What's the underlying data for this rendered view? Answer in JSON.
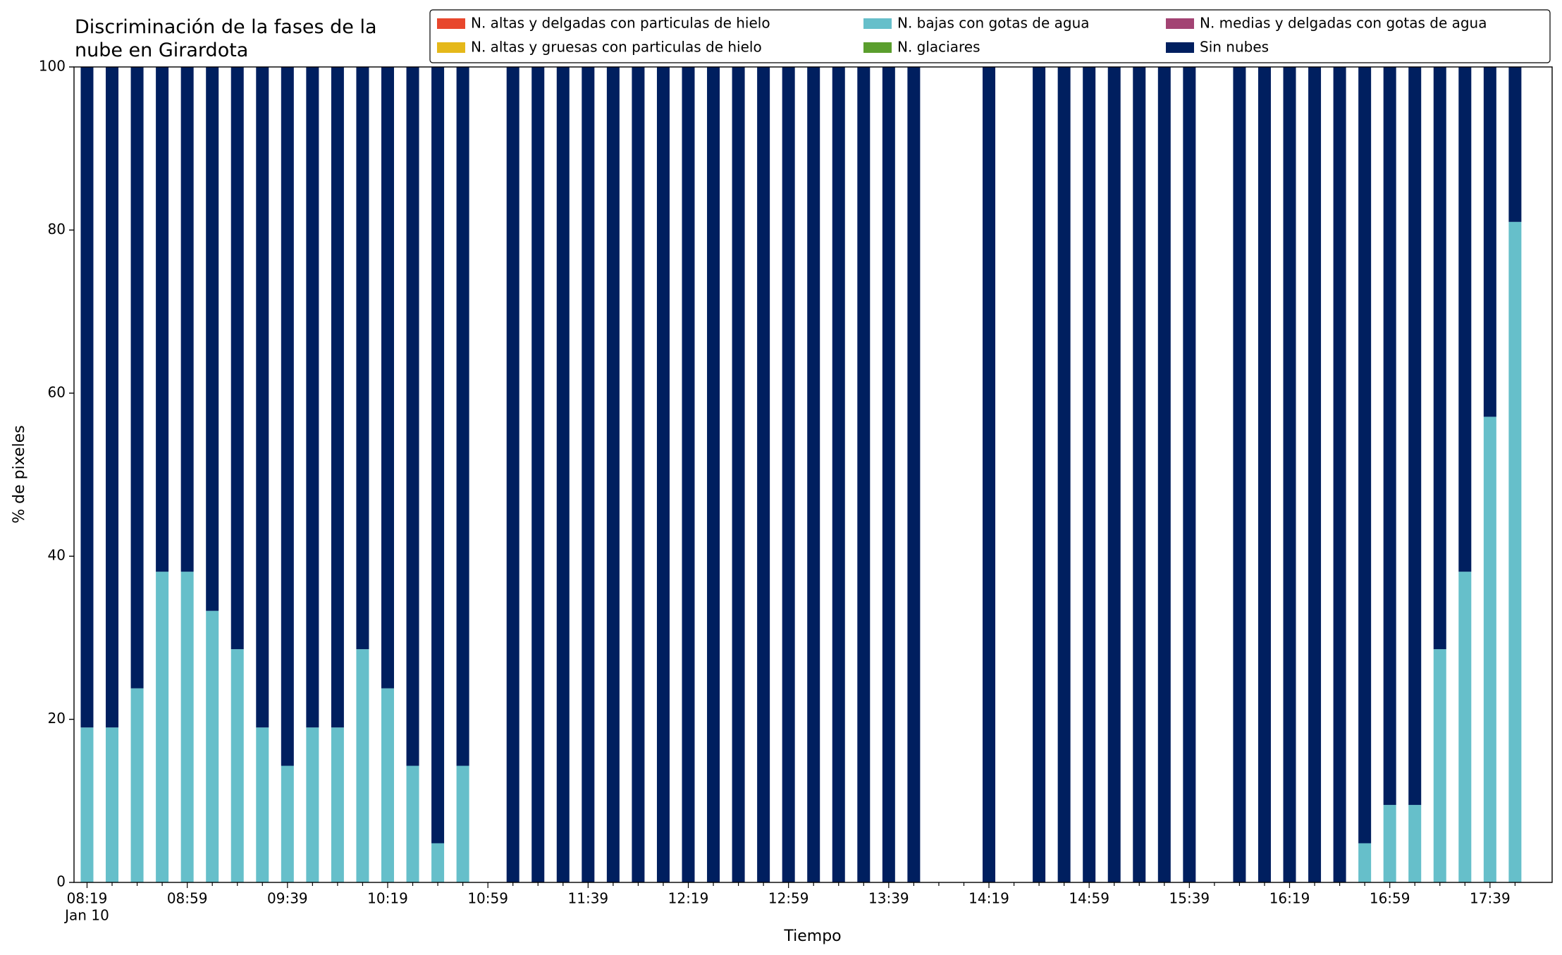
{
  "chart_data": {
    "type": "stacked_bar",
    "title": "Discriminación de la fases de la\nnube en Girardota",
    "xlabel": "Tiempo",
    "ylabel": "% de pixeles",
    "date_label": "Jan 10",
    "categories": [
      "08:19",
      null,
      null,
      null,
      "08:59",
      null,
      null,
      null,
      "09:39",
      null,
      null,
      null,
      "10:19",
      null,
      null,
      null,
      "10:59",
      null,
      null,
      null,
      "11:39",
      null,
      null,
      null,
      "12:19",
      null,
      null,
      null,
      "12:59",
      null,
      null,
      null,
      "13:39",
      null,
      null,
      null,
      "14:19",
      null,
      null,
      null,
      "14:59",
      null,
      null,
      null,
      "15:39",
      null,
      null,
      null,
      "16:19",
      null,
      null,
      null,
      "16:59",
      null,
      null,
      null,
      "17:39",
      null
    ],
    "ylim": [
      0,
      100
    ],
    "yticks": [
      0,
      20,
      40,
      60,
      80,
      100
    ],
    "grid": false,
    "legend": "upper right",
    "series": [
      {
        "name": "N. altas y delgadas con particulas de hielo",
        "color": "#e8472d",
        "values": [
          0,
          0,
          0,
          0,
          0,
          0,
          0,
          0,
          0,
          0,
          0,
          0,
          0,
          0,
          0,
          0,
          null,
          0,
          0,
          0,
          0,
          0,
          0,
          0,
          0,
          0,
          0,
          0,
          0,
          0,
          0,
          0,
          0,
          0,
          null,
          null,
          0,
          null,
          0,
          0,
          0,
          0,
          0,
          0,
          0,
          null,
          0,
          0,
          0,
          0,
          0,
          0,
          0,
          0,
          0,
          0,
          0,
          0
        ]
      },
      {
        "name": "N. altas y gruesas con particulas de hielo",
        "color": "#e5b81a",
        "values": [
          0,
          0,
          0,
          0,
          0,
          0,
          0,
          0,
          0,
          0,
          0,
          0,
          0,
          0,
          0,
          0,
          null,
          0,
          0,
          0,
          0,
          0,
          0,
          0,
          0,
          0,
          0,
          0,
          0,
          0,
          0,
          0,
          0,
          0,
          null,
          null,
          0,
          null,
          0,
          0,
          0,
          0,
          0,
          0,
          0,
          null,
          0,
          0,
          0,
          0,
          0,
          0,
          0,
          0,
          0,
          0,
          0,
          0
        ]
      },
      {
        "name": "N. bajas con gotas de agua",
        "color": "#66bfca",
        "values": [
          19.0,
          19.0,
          23.8,
          38.1,
          38.1,
          33.3,
          28.6,
          19.0,
          14.3,
          19.0,
          19.0,
          28.6,
          23.8,
          14.3,
          4.8,
          14.3,
          null,
          0,
          0,
          0,
          0,
          0,
          0,
          0,
          0,
          0,
          0,
          0,
          0,
          0,
          0,
          0,
          0,
          0,
          null,
          null,
          0,
          null,
          0,
          0,
          0,
          0,
          0,
          0,
          0,
          null,
          0,
          0,
          0,
          0,
          0,
          4.8,
          9.5,
          9.5,
          28.6,
          38.1,
          57.1,
          81.0
        ]
      },
      {
        "name": "N. glaciares",
        "color": "#5a9e2d",
        "values": [
          0,
          0,
          0,
          0,
          0,
          0,
          0,
          0,
          0,
          0,
          0,
          0,
          0,
          0,
          0,
          0,
          null,
          0,
          0,
          0,
          0,
          0,
          0,
          0,
          0,
          0,
          0,
          0,
          0,
          0,
          0,
          0,
          0,
          0,
          null,
          null,
          0,
          null,
          0,
          0,
          0,
          0,
          0,
          0,
          0,
          null,
          0,
          0,
          0,
          0,
          0,
          0,
          0,
          0,
          0,
          0,
          0,
          0
        ]
      },
      {
        "name": "N. medias y delgadas con gotas de agua",
        "color": "#a34373",
        "values": [
          0,
          0,
          0,
          0,
          0,
          0,
          0,
          0,
          0,
          0,
          0,
          0,
          0,
          0,
          0,
          0,
          null,
          0,
          0,
          0,
          0,
          0,
          0,
          0,
          0,
          0,
          0,
          0,
          0,
          0,
          0,
          0,
          0,
          0,
          null,
          null,
          0,
          null,
          0,
          0,
          0,
          0,
          0,
          0,
          0,
          null,
          0,
          0,
          0,
          0,
          0,
          0,
          0,
          0,
          0,
          0,
          0,
          0
        ]
      },
      {
        "name": "Sin nubes",
        "color": "#001f5f",
        "values": [
          81.0,
          81.0,
          76.2,
          61.9,
          61.9,
          66.7,
          71.4,
          81.0,
          85.7,
          81.0,
          81.0,
          71.4,
          76.2,
          85.7,
          95.2,
          85.7,
          null,
          100,
          100,
          100,
          100,
          100,
          100,
          100,
          100,
          100,
          100,
          100,
          100,
          100,
          100,
          100,
          100,
          100,
          null,
          null,
          100,
          null,
          100,
          100,
          100,
          100,
          100,
          100,
          100,
          null,
          100,
          100,
          100,
          100,
          100,
          95.2,
          90.5,
          90.5,
          71.4,
          61.9,
          42.9,
          19.0
        ]
      }
    ]
  }
}
